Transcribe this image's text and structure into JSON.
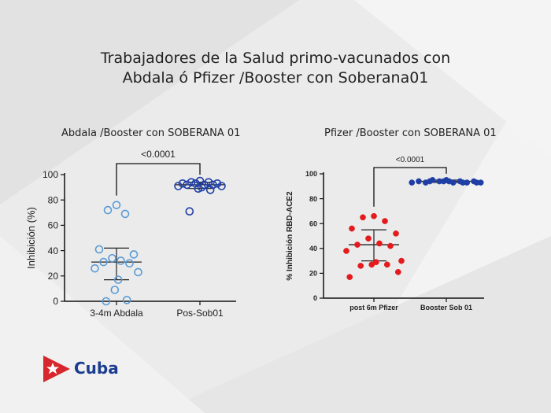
{
  "header": {
    "title_line1": "Trabajadores de la Salud primo-vacunados con",
    "title_line2": "Abdala ó Pfizer /Booster con Soberana01"
  },
  "logo": {
    "text": "Cuba",
    "colors": {
      "star": "#ffffff",
      "triangle": "#d7262c",
      "text": "#1b3c8f"
    }
  },
  "chart_data": [
    {
      "type": "scatter",
      "title": "Abdala /Booster con SOBERANA 01",
      "ylabel": "Inhibición (%)",
      "xlabel": "",
      "ylim": [
        0,
        100
      ],
      "yticks": [
        0,
        20,
        40,
        60,
        80,
        100
      ],
      "categories": [
        "3-4m Abdala",
        "Pos-Sob01"
      ],
      "significance": "<0.0001",
      "marker": "open-circle",
      "series": [
        {
          "category": "3-4m Abdala",
          "color": "#5b9bd5",
          "values": [
            76,
            72,
            69,
            41,
            37,
            34,
            32,
            31,
            30,
            26,
            23,
            17,
            9,
            1,
            0
          ],
          "mean": 31,
          "error": [
            17,
            42
          ]
        },
        {
          "category": "Pos-Sob01",
          "color": "#1f3fa6",
          "values": [
            95,
            94,
            94,
            93,
            93,
            93,
            92,
            92,
            92,
            91,
            91,
            90,
            89,
            88,
            71
          ],
          "mean": 92,
          "error": [
            89,
            94
          ]
        }
      ]
    },
    {
      "type": "scatter",
      "title": "Pfizer /Booster con SOBERANA 01",
      "ylabel": "% Inhibición RBD-ACE2",
      "xlabel": "",
      "ylim": [
        0,
        100
      ],
      "yticks": [
        0,
        20,
        40,
        60,
        80,
        100
      ],
      "categories": [
        "post 6m Pfizer",
        "Booster Sob 01"
      ],
      "significance": "<0.0001",
      "marker": "filled-circle",
      "series": [
        {
          "category": "post 6m Pfizer",
          "color": "#e41a1c",
          "values": [
            66,
            65,
            62,
            56,
            52,
            48,
            44,
            43,
            42,
            38,
            30,
            29,
            27,
            27,
            26,
            21,
            17
          ],
          "mean": 43,
          "error": [
            30,
            55
          ]
        },
        {
          "category": "Booster Sob 01",
          "color": "#1f3fa6",
          "values": [
            95,
            95,
            94,
            94,
            94,
            94,
            93,
            93,
            93,
            93,
            93,
            94,
            94,
            93,
            94,
            93
          ],
          "mean": 94,
          "error": [
            93,
            95
          ]
        }
      ]
    }
  ]
}
